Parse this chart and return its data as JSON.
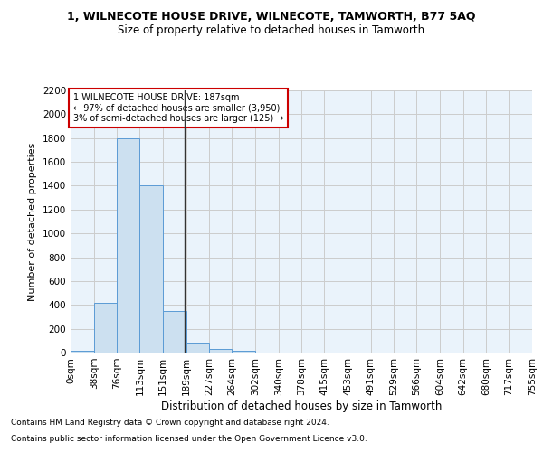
{
  "title": "1, WILNECOTE HOUSE DRIVE, WILNECOTE, TAMWORTH, B77 5AQ",
  "subtitle": "Size of property relative to detached houses in Tamworth",
  "xlabel": "Distribution of detached houses by size in Tamworth",
  "ylabel": "Number of detached properties",
  "footnote1": "Contains HM Land Registry data © Crown copyright and database right 2024.",
  "footnote2": "Contains public sector information licensed under the Open Government Licence v3.0.",
  "annotation_line1": "1 WILNECOTE HOUSE DRIVE: 187sqm",
  "annotation_line2": "← 97% of detached houses are smaller (3,950)",
  "annotation_line3": "3% of semi-detached houses are larger (125) →",
  "property_size": 187,
  "bin_edges": [
    0,
    38,
    76,
    113,
    151,
    189,
    227,
    264,
    302,
    340,
    378,
    415,
    453,
    491,
    529,
    566,
    604,
    642,
    680,
    717,
    755
  ],
  "bin_heights": [
    15,
    420,
    1800,
    1400,
    350,
    80,
    30,
    15,
    0,
    0,
    0,
    0,
    0,
    0,
    0,
    0,
    0,
    0,
    0,
    0
  ],
  "bar_color": "#cce0f0",
  "bar_edge_color": "#5b9bd5",
  "vline_x": 187,
  "vline_color": "#333333",
  "grid_color": "#cccccc",
  "background_color": "#eaf3fb",
  "annotation_box_color": "#cc0000",
  "ylim": [
    0,
    2200
  ],
  "yticks": [
    0,
    200,
    400,
    600,
    800,
    1000,
    1200,
    1400,
    1600,
    1800,
    2000,
    2200
  ],
  "title_fontsize": 9,
  "subtitle_fontsize": 8.5,
  "ylabel_fontsize": 8,
  "xlabel_fontsize": 8.5,
  "tick_fontsize": 7.5,
  "annot_fontsize": 7,
  "footnote_fontsize": 6.5
}
